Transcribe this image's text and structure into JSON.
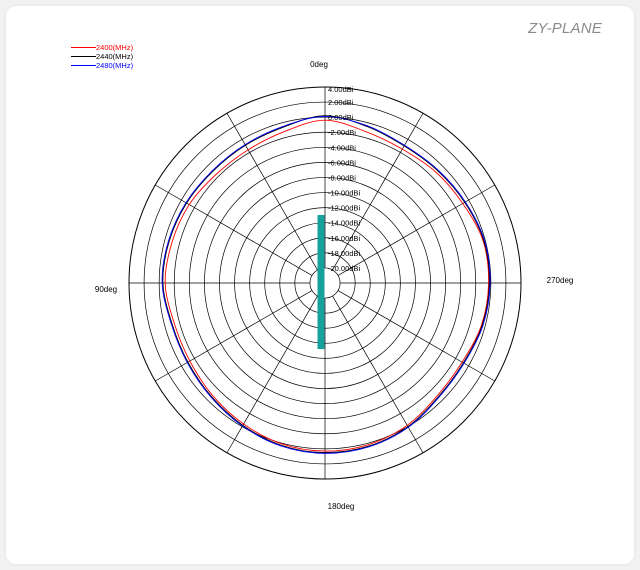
{
  "plane_title": "ZY-PLANE",
  "chart_data": {
    "type": "polar",
    "radial_unit": "dBi",
    "radial_range": [
      -20,
      4
    ],
    "radial_ticks": [
      "4.00dBi",
      "2.00dBi",
      "0.00dBi",
      "-2.00dBi",
      "-4.00dBi",
      "-6.00dBi",
      "-8.00dBi",
      "-10.00dBi",
      "-12.00dBi",
      "-14.00dBi",
      "-16.00dBi",
      "-18.00dBi",
      "-20.00dBi"
    ],
    "angle_labels": [
      {
        "deg": 0,
        "text": "0deg"
      },
      {
        "deg": 90,
        "text": "90deg"
      },
      {
        "deg": 180,
        "text": "180deg"
      },
      {
        "deg": 270,
        "text": "270deg"
      }
    ],
    "angle_direction": "counterclockwise",
    "spoke_step_deg": 30,
    "legend_position": "top-left",
    "angles_deg": [
      0,
      15,
      30,
      45,
      60,
      75,
      90,
      105,
      120,
      135,
      150,
      165,
      180,
      195,
      210,
      225,
      240,
      255,
      270,
      285,
      300,
      315,
      330,
      345
    ],
    "series": [
      {
        "name": "2400(MHz)",
        "color": "#ff0000",
        "values": [
          -0.4,
          -1.2,
          -1.6,
          -1.6,
          -1.2,
          -1.0,
          -0.8,
          -1.3,
          -1.3,
          -0.9,
          -0.4,
          0.1,
          0.3,
          0.2,
          -0.2,
          -0.9,
          -1.0,
          -0.5,
          -0.3,
          -0.3,
          -0.9,
          -1.2,
          -1.5,
          -1.2
        ]
      },
      {
        "name": "2440(MHz)",
        "color": "#000000",
        "values": [
          0.2,
          -0.6,
          -0.9,
          -1.0,
          -0.8,
          -0.6,
          -0.5,
          -1.0,
          -1.0,
          -0.7,
          -0.2,
          0.3,
          0.5,
          0.4,
          0.0,
          -0.7,
          -0.8,
          -0.4,
          -0.2,
          -0.2,
          -0.6,
          -0.9,
          -1.0,
          -0.5
        ]
      },
      {
        "name": "2480(MHz)",
        "color": "#0000ff",
        "values": [
          0.1,
          -0.5,
          -0.8,
          -0.9,
          -0.7,
          -0.5,
          -0.4,
          -0.9,
          -0.9,
          -0.6,
          -0.1,
          0.4,
          0.6,
          0.5,
          0.1,
          -0.6,
          -0.7,
          -0.3,
          -0.1,
          -0.1,
          -0.5,
          -0.8,
          -0.9,
          -0.4
        ]
      }
    ]
  }
}
